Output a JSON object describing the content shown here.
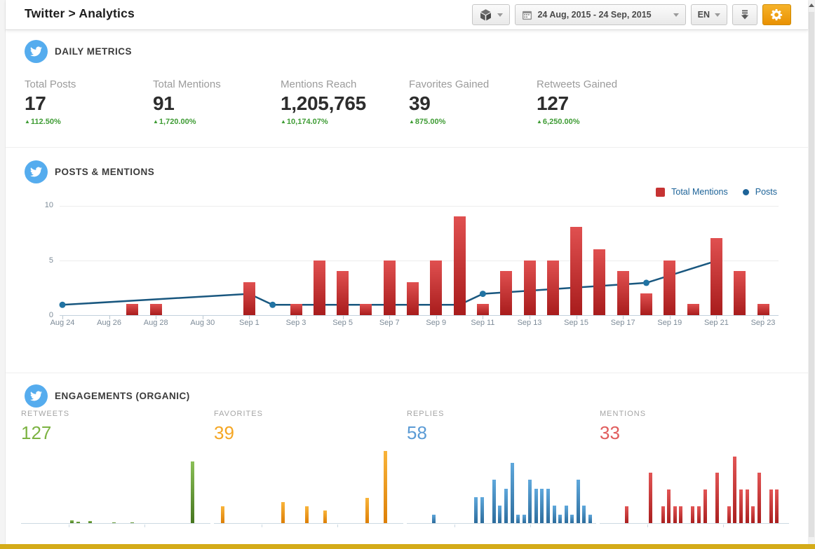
{
  "header": {
    "title": "Twitter > Analytics",
    "toolbar": {
      "network_button_icon": "cube-icon",
      "date_range": "24 Aug, 2015 - 24 Sep, 2015",
      "language": "EN",
      "download_button_icon": "download-icon",
      "settings_button_icon": "gear-icon",
      "settings_button_color": "#eda307"
    }
  },
  "daily_metrics": {
    "section_title": "DAILY METRICS",
    "change_color": "#3f9c35",
    "metrics": [
      {
        "label": "Total Posts",
        "value": "17",
        "change": "112.50%"
      },
      {
        "label": "Total Mentions",
        "value": "91",
        "change": "1,720.00%"
      },
      {
        "label": "Mentions Reach",
        "value": "1,205,765",
        "change": "10,174.07%"
      },
      {
        "label": "Favorites Gained",
        "value": "39",
        "change": "875.00%"
      },
      {
        "label": "Retweets Gained",
        "value": "127",
        "change": "6,250.00%"
      }
    ]
  },
  "posts_mentions": {
    "section_title": "POSTS & MENTIONS",
    "legend": [
      {
        "label": "Total Mentions",
        "color": "#c63333",
        "shape": "square"
      },
      {
        "label": "Posts",
        "color": "#1d6398",
        "shape": "circle"
      }
    ]
  },
  "engagements": {
    "section_title": "ENGAGEMENTS (ORGANIC)",
    "panels": [
      {
        "label": "RETWEETS",
        "total": "127",
        "color": "#7cb342"
      },
      {
        "label": "FAVORITES",
        "total": "39",
        "color": "#f5a623"
      },
      {
        "label": "REPLIES",
        "total": "58",
        "color": "#5b9bd5"
      },
      {
        "label": "MENTIONS",
        "total": "33",
        "color": "#e05c5c"
      }
    ]
  },
  "chart_data": [
    {
      "id": "posts_mentions",
      "type": "bar+line",
      "title": "POSTS & MENTIONS",
      "x_range": [
        "Aug 24, 2015",
        "Sep 24, 2015"
      ],
      "ylim": [
        0,
        10
      ],
      "yticks": [
        0,
        5,
        10
      ],
      "grid": "horizontal",
      "legend_position": "top-right",
      "xticks": [
        {
          "day": 0,
          "label": "Aug 24"
        },
        {
          "day": 2,
          "label": "Aug 26"
        },
        {
          "day": 4,
          "label": "Aug 28"
        },
        {
          "day": 6,
          "label": "Aug 30"
        },
        {
          "day": 8,
          "label": "Sep 1"
        },
        {
          "day": 10,
          "label": "Sep 3"
        },
        {
          "day": 12,
          "label": "Sep 5"
        },
        {
          "day": 14,
          "label": "Sep 7"
        },
        {
          "day": 16,
          "label": "Sep 9"
        },
        {
          "day": 18,
          "label": "Sep 11"
        },
        {
          "day": 20,
          "label": "Sep 13"
        },
        {
          "day": 22,
          "label": "Sep 15"
        },
        {
          "day": 24,
          "label": "Sep 17"
        },
        {
          "day": 26,
          "label": "Sep 19"
        },
        {
          "day": 28,
          "label": "Sep 21"
        },
        {
          "day": 30,
          "label": "Sep 23"
        }
      ],
      "series": [
        {
          "name": "Total Mentions",
          "type": "bar",
          "color_top": "#e05050",
          "color_bottom": "#a81c1c",
          "points": [
            {
              "day": 3,
              "date": "Aug 27",
              "value": 1
            },
            {
              "day": 4,
              "date": "Aug 28",
              "value": 1
            },
            {
              "day": 8,
              "date": "Sep 1",
              "value": 3
            },
            {
              "day": 10,
              "date": "Sep 3",
              "value": 1
            },
            {
              "day": 11,
              "date": "Sep 4",
              "value": 5
            },
            {
              "day": 12,
              "date": "Sep 5",
              "value": 4
            },
            {
              "day": 13,
              "date": "Sep 6",
              "value": 1
            },
            {
              "day": 14,
              "date": "Sep 7",
              "value": 5
            },
            {
              "day": 15,
              "date": "Sep 8",
              "value": 3
            },
            {
              "day": 16,
              "date": "Sep 9",
              "value": 5
            },
            {
              "day": 17,
              "date": "Sep 10",
              "value": 9
            },
            {
              "day": 18,
              "date": "Sep 11",
              "value": 1
            },
            {
              "day": 19,
              "date": "Sep 12",
              "value": 4
            },
            {
              "day": 20,
              "date": "Sep 13",
              "value": 5
            },
            {
              "day": 21,
              "date": "Sep 14",
              "value": 5
            },
            {
              "day": 22,
              "date": "Sep 15",
              "value": 8
            },
            {
              "day": 23,
              "date": "Sep 16",
              "value": 6
            },
            {
              "day": 24,
              "date": "Sep 17",
              "value": 4
            },
            {
              "day": 25,
              "date": "Sep 18",
              "value": 2
            },
            {
              "day": 26,
              "date": "Sep 19",
              "value": 5
            },
            {
              "day": 27,
              "date": "Sep 20",
              "value": 1
            },
            {
              "day": 28,
              "date": "Sep 21",
              "value": 7
            },
            {
              "day": 29,
              "date": "Sep 22",
              "value": 4
            },
            {
              "day": 30,
              "date": "Sep 23",
              "value": 1
            }
          ]
        },
        {
          "name": "Posts",
          "type": "line",
          "color": "#19577f",
          "dot_color": "#2173a3",
          "points": [
            {
              "day": 0,
              "date": "Aug 24",
              "value": 1
            },
            {
              "day": 8,
              "date": "Sep 1",
              "value": 2
            },
            {
              "day": 9,
              "date": "Sep 2",
              "value": 1
            },
            {
              "day": 11,
              "date": "Sep 4",
              "value": 1
            },
            {
              "day": 15,
              "date": "Sep 8",
              "value": 1
            },
            {
              "day": 17,
              "date": "Sep 10",
              "value": 1
            },
            {
              "day": 18,
              "date": "Sep 11",
              "value": 2
            },
            {
              "day": 25,
              "date": "Sep 18",
              "value": 3
            },
            {
              "day": 28,
              "date": "Sep 21",
              "value": 5
            }
          ]
        }
      ]
    },
    {
      "id": "retweets",
      "type": "bar",
      "title": "RETWEETS",
      "total": 127,
      "ylim": [
        0,
        136
      ],
      "bar_top": "#8abf57",
      "bar_bottom": "#46761f",
      "points": [
        {
          "day": 8,
          "date": "Sep 1",
          "value": 5
        },
        {
          "day": 9,
          "date": "Sep 2",
          "value": 2
        },
        {
          "day": 11,
          "date": "Sep 4",
          "value": 4
        },
        {
          "day": 15,
          "date": "Sep 8",
          "value": 1
        },
        {
          "day": 18,
          "date": "Sep 11",
          "value": 1
        },
        {
          "day": 28,
          "date": "Sep 21",
          "value": 114
        }
      ]
    },
    {
      "id": "favorites",
      "type": "bar",
      "title": "FAVORITES",
      "total": 39,
      "ylim": [
        0,
        17.4
      ],
      "bar_top": "#f9b43a",
      "bar_bottom": "#dd7f06",
      "points": [
        {
          "day": 1,
          "date": "Aug 25",
          "value": 4
        },
        {
          "day": 11,
          "date": "Sep 4",
          "value": 5
        },
        {
          "day": 15,
          "date": "Sep 8",
          "value": 4
        },
        {
          "day": 18,
          "date": "Sep 11",
          "value": 3
        },
        {
          "day": 25,
          "date": "Sep 18",
          "value": 6
        },
        {
          "day": 28,
          "date": "Sep 21",
          "value": 17
        }
      ]
    },
    {
      "id": "replies",
      "type": "bar",
      "title": "REPLIES",
      "total": 58,
      "ylim": [
        0,
        8.5
      ],
      "bar_top": "#5fa8dc",
      "bar_bottom": "#2c6c9c",
      "points": [
        {
          "day": 4,
          "date": "Aug 28",
          "value": 1
        },
        {
          "day": 11,
          "date": "Sep 4",
          "value": 3
        },
        {
          "day": 12,
          "date": "Sep 5",
          "value": 3
        },
        {
          "day": 14,
          "date": "Sep 7",
          "value": 5
        },
        {
          "day": 15,
          "date": "Sep 8",
          "value": 2
        },
        {
          "day": 16,
          "date": "Sep 9",
          "value": 4
        },
        {
          "day": 17,
          "date": "Sep 10",
          "value": 7
        },
        {
          "day": 18,
          "date": "Sep 11",
          "value": 1
        },
        {
          "day": 19,
          "date": "Sep 12",
          "value": 1
        },
        {
          "day": 20,
          "date": "Sep 13",
          "value": 5
        },
        {
          "day": 21,
          "date": "Sep 14",
          "value": 4
        },
        {
          "day": 22,
          "date": "Sep 15",
          "value": 4
        },
        {
          "day": 23,
          "date": "Sep 16",
          "value": 4
        },
        {
          "day": 24,
          "date": "Sep 17",
          "value": 2
        },
        {
          "day": 25,
          "date": "Sep 18",
          "value": 1
        },
        {
          "day": 26,
          "date": "Sep 19",
          "value": 2
        },
        {
          "day": 27,
          "date": "Sep 20",
          "value": 1
        },
        {
          "day": 28,
          "date": "Sep 21",
          "value": 5
        },
        {
          "day": 29,
          "date": "Sep 22",
          "value": 2
        },
        {
          "day": 30,
          "date": "Sep 23",
          "value": 1
        }
      ]
    },
    {
      "id": "mentions",
      "type": "bar",
      "title": "MENTIONS",
      "total": 33,
      "ylim": [
        0,
        4.4
      ],
      "bar_top": "#e25555",
      "bar_bottom": "#aa1f1f",
      "points": [
        {
          "day": 4,
          "date": "Aug 28",
          "value": 1
        },
        {
          "day": 8,
          "date": "Sep 1",
          "value": 3
        },
        {
          "day": 10,
          "date": "Sep 3",
          "value": 1
        },
        {
          "day": 11,
          "date": "Sep 4",
          "value": 2
        },
        {
          "day": 12,
          "date": "Sep 5",
          "value": 1
        },
        {
          "day": 13,
          "date": "Sep 6",
          "value": 1
        },
        {
          "day": 15,
          "date": "Sep 8",
          "value": 1
        },
        {
          "day": 16,
          "date": "Sep 9",
          "value": 1
        },
        {
          "day": 17,
          "date": "Sep 10",
          "value": 2
        },
        {
          "day": 19,
          "date": "Sep 12",
          "value": 3
        },
        {
          "day": 21,
          "date": "Sep 14",
          "value": 1
        },
        {
          "day": 22,
          "date": "Sep 15",
          "value": 4
        },
        {
          "day": 23,
          "date": "Sep 16",
          "value": 2
        },
        {
          "day": 24,
          "date": "Sep 17",
          "value": 2
        },
        {
          "day": 25,
          "date": "Sep 18",
          "value": 1
        },
        {
          "day": 26,
          "date": "Sep 19",
          "value": 3
        },
        {
          "day": 28,
          "date": "Sep 21",
          "value": 2
        },
        {
          "day": 29,
          "date": "Sep 22",
          "value": 2
        }
      ]
    }
  ]
}
